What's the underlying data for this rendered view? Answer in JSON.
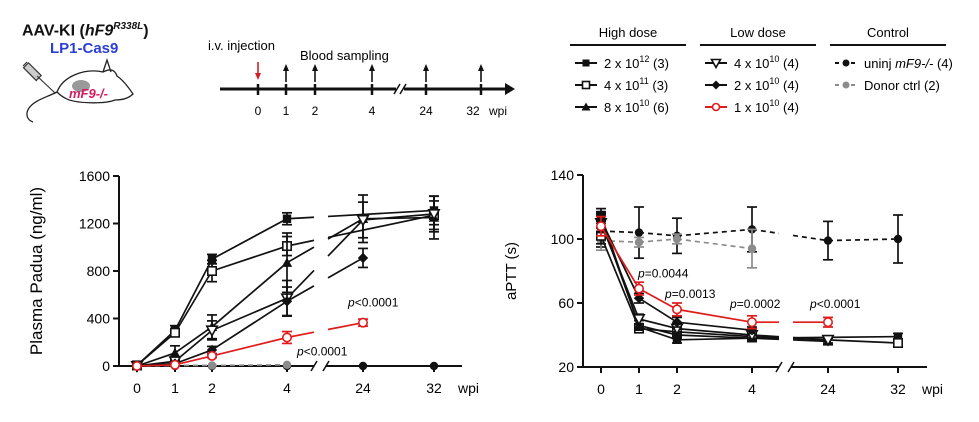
{
  "header": {
    "construct_prefix": "AAV-KI (",
    "construct_gene": "hF9",
    "construct_mutation": "R338L",
    "construct_suffix": ")",
    "promoter": "LP1-Cas9",
    "mouse_label": "mF9-/-"
  },
  "timeline": {
    "injection_label": "i.v. injection",
    "sampling_label": "Blood sampling",
    "ticks": [
      "0",
      "1",
      "2",
      "4",
      "24",
      "32"
    ],
    "unit": "wpi",
    "colors": {
      "injection_arrow": "#d42020",
      "sampling_arrow": "#111111"
    }
  },
  "legend": {
    "groups": [
      {
        "title": "High dose",
        "items": [
          {
            "label": "2 x 10",
            "exp": "12",
            "n": "(3)",
            "marker": "filled-square",
            "color": "#111111",
            "dash": false
          },
          {
            "label": "4 x 10",
            "exp": "11",
            "n": "(3)",
            "marker": "open-square",
            "color": "#111111",
            "dash": false
          },
          {
            "label": "8 x 10",
            "exp": "10",
            "n": "(6)",
            "marker": "filled-triangle",
            "color": "#111111",
            "dash": false
          }
        ]
      },
      {
        "title": "Low dose",
        "items": [
          {
            "label": "4 x 10",
            "exp": "10",
            "n": "(4)",
            "marker": "open-inverted-triangle",
            "color": "#111111",
            "dash": false
          },
          {
            "label": "2 x 10",
            "exp": "10",
            "n": "(4)",
            "marker": "filled-diamond",
            "color": "#111111",
            "dash": false
          },
          {
            "label": "1 x 10",
            "exp": "10",
            "n": "(4)",
            "marker": "open-circle",
            "color": "#e01b1b",
            "dash": false
          }
        ]
      },
      {
        "title": "Control",
        "items": [
          {
            "label": "uninj ",
            "italic": "mF9-/-",
            "n": "(4)",
            "marker": "filled-circle",
            "color": "#111111",
            "dash": true
          },
          {
            "label": "Donor ctrl",
            "n": "(2)",
            "marker": "filled-circle",
            "color": "#8c8c8c",
            "dash": true
          }
        ]
      }
    ]
  },
  "chart_data": [
    {
      "type": "line",
      "title": "",
      "xlabel": "wpi",
      "ylabel": "Plasma Padua (ng/ml)",
      "x": [
        0,
        1,
        2,
        4,
        24,
        32
      ],
      "x_tick_labels": [
        "0",
        "1",
        "2",
        "4",
        "24",
        "32"
      ],
      "axis_break_between": [
        4,
        24
      ],
      "ylim": [
        0,
        1600
      ],
      "y_ticks": [
        0,
        400,
        800,
        1200,
        1600
      ],
      "grid": false,
      "series": [
        {
          "name": "2 x 10^12 (3)",
          "marker": "filled-square",
          "color": "#111111",
          "values": [
            5,
            300,
            900,
            1240,
            null,
            1310
          ],
          "err": [
            10,
            40,
            40,
            50,
            null,
            120
          ]
        },
        {
          "name": "4 x 10^11 (3)",
          "marker": "open-square",
          "color": "#111111",
          "values": [
            5,
            280,
            800,
            1010,
            null,
            1270
          ],
          "err": [
            10,
            30,
            90,
            80,
            null,
            120
          ]
        },
        {
          "name": "8 x 10^10 (6)",
          "marker": "filled-triangle",
          "color": "#111111",
          "values": [
            0,
            110,
            330,
            870,
            1240,
            1250
          ],
          "err": [
            10,
            60,
            100,
            250,
            200,
            180
          ]
        },
        {
          "name": "4 x 10^10 (4)",
          "marker": "open-inverted-triangle",
          "color": "#111111",
          "values": [
            0,
            40,
            300,
            570,
            1230,
            1280
          ],
          "err": [
            10,
            30,
            80,
            150,
            150,
            150
          ]
        },
        {
          "name": "2 x 10^10 (4)",
          "marker": "filled-diamond",
          "color": "#111111",
          "values": [
            0,
            20,
            135,
            545,
            910,
            null
          ],
          "err": [
            10,
            20,
            30,
            120,
            80,
            null
          ]
        },
        {
          "name": "1 x 10^10 (4)",
          "marker": "open-circle",
          "color": "#e01b1b",
          "values": [
            0,
            10,
            85,
            240,
            365,
            null
          ],
          "err": [
            5,
            10,
            15,
            50,
            30,
            null
          ]
        },
        {
          "name": "uninj mF9-/- (4)",
          "marker": "filled-circle",
          "color": "#111111",
          "dashed": true,
          "values": [
            0,
            0,
            0,
            0,
            0,
            0
          ],
          "err": [
            0,
            0,
            0,
            0,
            0,
            0
          ]
        },
        {
          "name": "Donor ctrl (2)",
          "marker": "filled-circle",
          "color": "#8c8c8c",
          "dashed": true,
          "values": [
            0,
            5,
            5,
            10,
            null,
            null
          ],
          "err": [
            0,
            0,
            0,
            0,
            null,
            null
          ]
        }
      ],
      "annotations": [
        {
          "text_italic": "p",
          "text": "<0.0001",
          "near_x": 4,
          "near_y": 240
        },
        {
          "text_italic": "p",
          "text": "<0.0001",
          "near_x": 24,
          "near_y": 365
        }
      ]
    },
    {
      "type": "line",
      "title": "",
      "xlabel": "wpi",
      "ylabel": "aPTT (s)",
      "x": [
        0,
        1,
        2,
        4,
        24,
        32
      ],
      "x_tick_labels": [
        "0",
        "1",
        "2",
        "4",
        "24",
        "32"
      ],
      "axis_break_between": [
        4,
        24
      ],
      "ylim": [
        20,
        140
      ],
      "y_ticks": [
        20,
        60,
        100,
        140
      ],
      "grid": false,
      "series": [
        {
          "name": "2 x 10^12 (3)",
          "marker": "filled-square",
          "color": "#111111",
          "values": [
            115,
            45,
            37,
            38,
            null,
            39
          ],
          "err": [
            4,
            2,
            2,
            2,
            null,
            2
          ]
        },
        {
          "name": "4 x 10^11 (3)",
          "marker": "open-square",
          "color": "#111111",
          "values": [
            102,
            44,
            42,
            39,
            null,
            35
          ],
          "err": [
            5,
            2,
            2,
            2,
            null,
            2
          ]
        },
        {
          "name": "8 x 10^10 (6)",
          "marker": "filled-triangle",
          "color": "#111111",
          "values": [
            112,
            46,
            40,
            38,
            36,
            null
          ],
          "err": [
            5,
            3,
            2,
            2,
            2,
            null
          ]
        },
        {
          "name": "4 x 10^10 (4)",
          "marker": "open-inverted-triangle",
          "color": "#111111",
          "values": [
            110,
            50,
            44,
            40,
            37,
            null
          ],
          "err": [
            6,
            3,
            3,
            2,
            2,
            null
          ]
        },
        {
          "name": "2 x 10^10 (4)",
          "marker": "filled-diamond",
          "color": "#111111",
          "values": [
            112,
            63,
            48,
            43,
            null,
            null
          ],
          "err": [
            5,
            3,
            3,
            2,
            null,
            null
          ]
        },
        {
          "name": "1 x 10^10 (4)",
          "marker": "open-circle",
          "color": "#e01b1b",
          "values": [
            108,
            69,
            56,
            48,
            48,
            null
          ],
          "err": [
            6,
            4,
            4,
            4,
            3,
            null
          ]
        },
        {
          "name": "uninj mF9-/- (4)",
          "marker": "filled-circle",
          "color": "#111111",
          "dashed": true,
          "values": [
            105,
            104,
            102,
            106,
            99,
            100
          ],
          "err": [
            10,
            16,
            11,
            14,
            12,
            15
          ]
        },
        {
          "name": "Donor ctrl (2)",
          "marker": "filled-circle",
          "color": "#8c8c8c",
          "dashed": true,
          "values": [
            99,
            98,
            100,
            94,
            null,
            null
          ],
          "err": [
            6,
            3,
            3,
            12,
            null,
            null
          ]
        }
      ],
      "annotations": [
        {
          "text_italic": "p",
          "text": "=0.0044",
          "near_x": 1,
          "near_y": 76
        },
        {
          "text_italic": "p",
          "text": "=0.0013",
          "near_x": 2,
          "near_y": 63
        },
        {
          "text_italic": "p",
          "text": "=0.0002",
          "near_x": 4,
          "near_y": 57
        },
        {
          "text_italic": "p",
          "text": "<0.0001",
          "near_x": 24,
          "near_y": 57
        }
      ]
    }
  ]
}
